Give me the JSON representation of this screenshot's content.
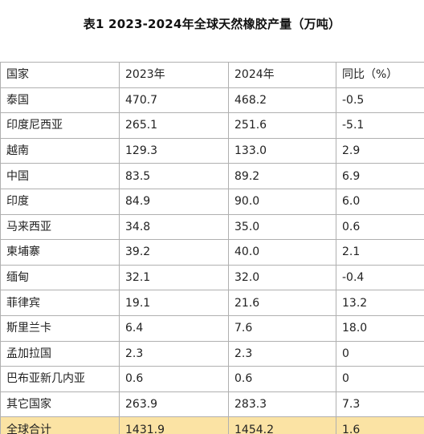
{
  "title": "表1 2023-2024年全球天然橡胶产量（万吨）",
  "table": {
    "headers": [
      "国家",
      "2023年",
      "2024年",
      "同比（%）"
    ],
    "rows": [
      [
        "泰国",
        "470.7",
        "468.2",
        "-0.5"
      ],
      [
        "印度尼西亚",
        "265.1",
        "251.6",
        "-5.1"
      ],
      [
        "越南",
        "129.3",
        "133.0",
        "2.9"
      ],
      [
        "中国",
        "83.5",
        "89.2",
        "6.9"
      ],
      [
        "印度",
        "84.9",
        "90.0",
        "6.0"
      ],
      [
        "马来西亚",
        "34.8",
        "35.0",
        "0.6"
      ],
      [
        "柬埔寨",
        "39.2",
        "40.0",
        "2.1"
      ],
      [
        "缅甸",
        "32.1",
        "32.0",
        "-0.4"
      ],
      [
        "菲律宾",
        "19.1",
        "21.6",
        "13.2"
      ],
      [
        "斯里兰卡",
        "6.4",
        "7.6",
        "18.0"
      ],
      [
        "孟加拉国",
        "2.3",
        "2.3",
        "0"
      ],
      [
        "巴布亚新几内亚",
        "0.6",
        "0.6",
        "0"
      ],
      [
        "其它国家",
        "263.9",
        "283.3",
        "7.3"
      ]
    ],
    "total": [
      "全球合计",
      "1431.9",
      "1454.2",
      "1.6"
    ]
  },
  "colors": {
    "total_row_bg": "#fbe3a4",
    "border": "#b0b0b0"
  }
}
